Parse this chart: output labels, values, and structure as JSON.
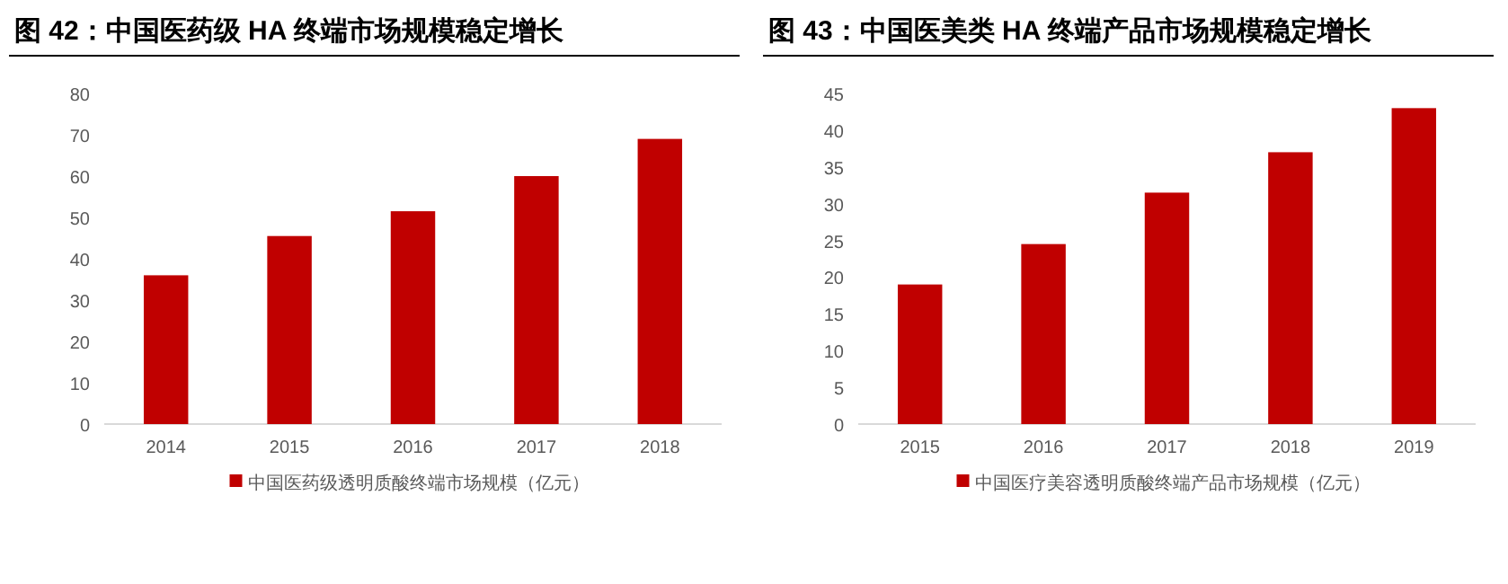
{
  "chart_data": [
    {
      "type": "bar",
      "title": "图 42：中国医药级 HA 终端市场规模稳定增长",
      "categories": [
        "2014",
        "2015",
        "2016",
        "2017",
        "2018"
      ],
      "ylim": [
        0,
        80
      ],
      "yticks": [
        0,
        10,
        20,
        30,
        40,
        50,
        60,
        70,
        80
      ],
      "legend": "bottom",
      "series": [
        {
          "name": "中国医药级透明质酸终端市场规模（亿元）",
          "color": "#c00000",
          "values": [
            36,
            45.5,
            51.5,
            60,
            69
          ]
        }
      ]
    },
    {
      "type": "bar",
      "title": "图 43：中国医美类 HA 终端产品市场规模稳定增长",
      "categories": [
        "2015",
        "2016",
        "2017",
        "2018",
        "2019"
      ],
      "ylim": [
        0,
        45
      ],
      "yticks": [
        0,
        5,
        10,
        15,
        20,
        25,
        30,
        35,
        40,
        45
      ],
      "legend": "bottom",
      "series": [
        {
          "name": "中国医疗美容透明质酸终端产品市场规模（亿元）",
          "color": "#c00000",
          "values": [
            19,
            24.5,
            31.5,
            37,
            43
          ]
        }
      ]
    }
  ]
}
